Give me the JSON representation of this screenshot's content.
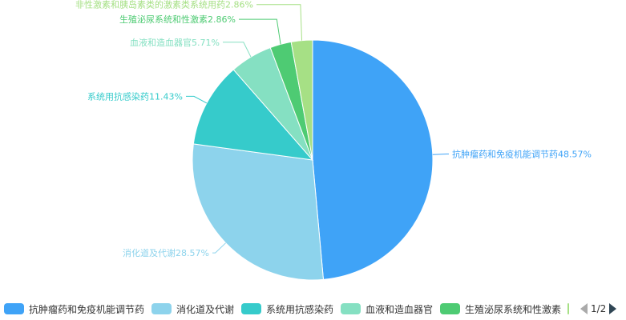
{
  "chart_data": {
    "type": "pie",
    "slices": [
      {
        "name": "抗肿瘤药和免疫机能调节药",
        "value": 48.57,
        "label": "抗肿瘤药和免疫机能调节药48.57%",
        "color": "#3fa3f7"
      },
      {
        "name": "消化道及代谢",
        "value": 28.57,
        "label": "消化道及代谢28.57%",
        "color": "#8dd3ec"
      },
      {
        "name": "系统用抗感染药",
        "value": 11.43,
        "label": "系统用抗感染药11.43%",
        "color": "#36cbcb"
      },
      {
        "name": "血液和造血器官",
        "value": 5.71,
        "label": "血液和造血器官5.71%",
        "color": "#85e0c2"
      },
      {
        "name": "生殖泌尿系统和性激素",
        "value": 2.86,
        "label": "生殖泌尿系统和性激素2.86%",
        "color": "#4ecb73"
      },
      {
        "name": "非性激素和胰岛素类的激素类系统用药",
        "value": 2.86,
        "label": "非性激素和胰岛素类的激素类系统用药2.86%",
        "color": "#a6e085"
      }
    ],
    "legend_position": "bottom"
  },
  "legend": {
    "items": [
      {
        "label": "抗肿瘤药和免疫机能调节药",
        "color": "#3fa3f7"
      },
      {
        "label": "消化道及代谢",
        "color": "#8dd3ec"
      },
      {
        "label": "系统用抗感染药",
        "color": "#36cbcb"
      },
      {
        "label": "血液和造血器官",
        "color": "#85e0c2"
      },
      {
        "label": "生殖泌尿系统和性激素",
        "color": "#4ecb73"
      },
      {
        "label": "",
        "color": "#a6e085"
      }
    ],
    "page_text": "1/2"
  }
}
